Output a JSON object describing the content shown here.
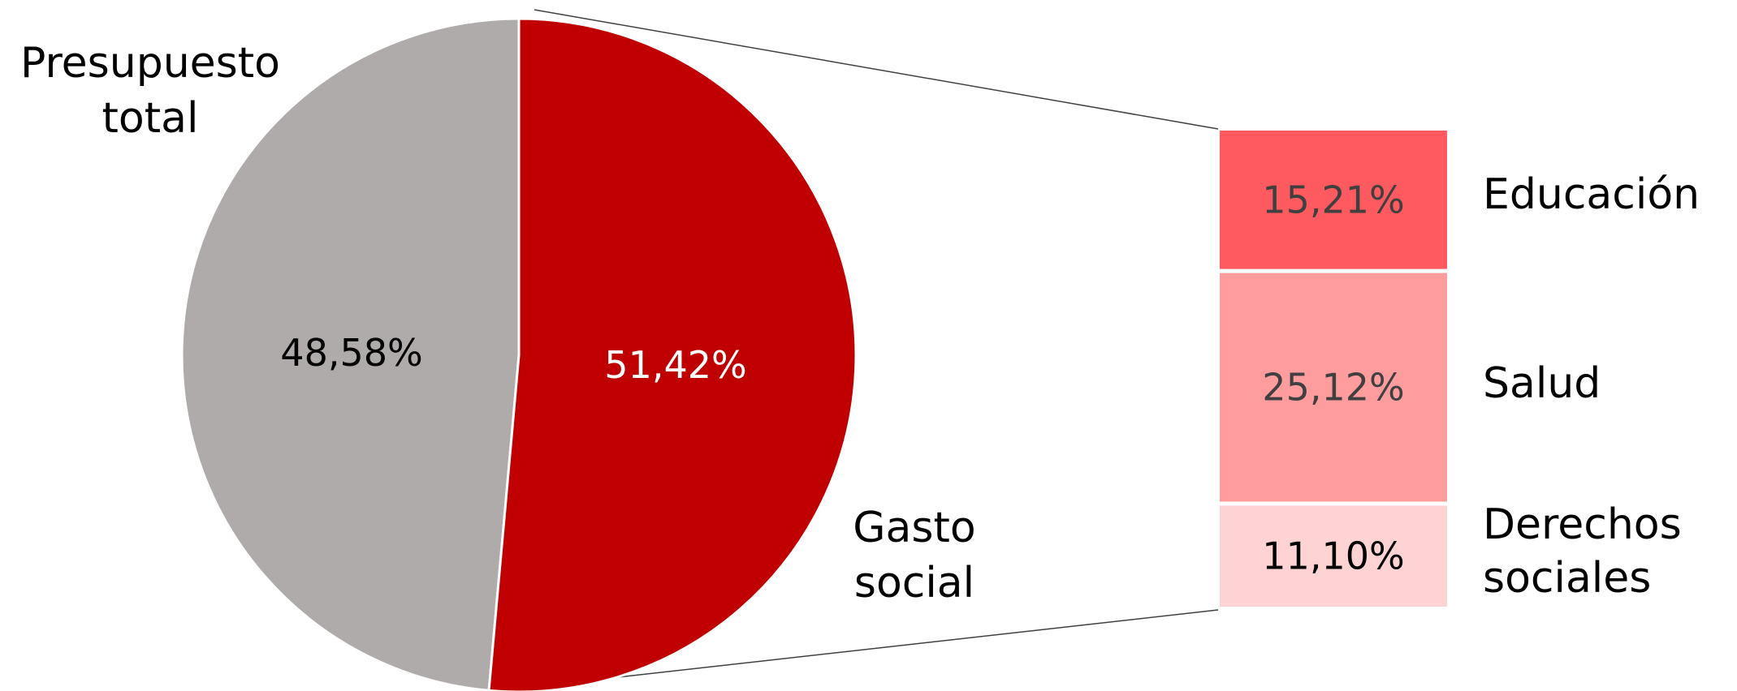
{
  "chart_data": {
    "type": "pie",
    "subtype": "bar-of-pie",
    "pie": {
      "slices": [
        {
          "label": "Presupuesto total",
          "label_lines": [
            "Presupuesto",
            "total"
          ],
          "value": 48.58,
          "value_label": "48,58%",
          "color": "#AFABAB",
          "text_color": "#000000"
        },
        {
          "label": "Gasto social",
          "label_lines": [
            "Gasto",
            "social"
          ],
          "value": 51.42,
          "value_label": "51,42%",
          "color": "#C00000",
          "text_color": "#FFFFFF"
        }
      ]
    },
    "breakdown": {
      "of": "Gasto social",
      "segments": [
        {
          "label": "Educación",
          "label_lines": [
            "Educación"
          ],
          "value": 15.21,
          "value_label": "15,21%",
          "color": "#FF5A5F",
          "text_color": "#404040"
        },
        {
          "label": "Salud",
          "label_lines": [
            "Salud"
          ],
          "value": 25.12,
          "value_label": "25,12%",
          "color": "#FF9C9E",
          "text_color": "#404040"
        },
        {
          "label": "Derechos sociales",
          "label_lines": [
            "Derechos",
            "sociales"
          ],
          "value": 11.1,
          "value_label": "11,10%",
          "color": "#FFD3D4",
          "text_color": "#000000"
        }
      ]
    },
    "title": "",
    "legend": "none"
  }
}
